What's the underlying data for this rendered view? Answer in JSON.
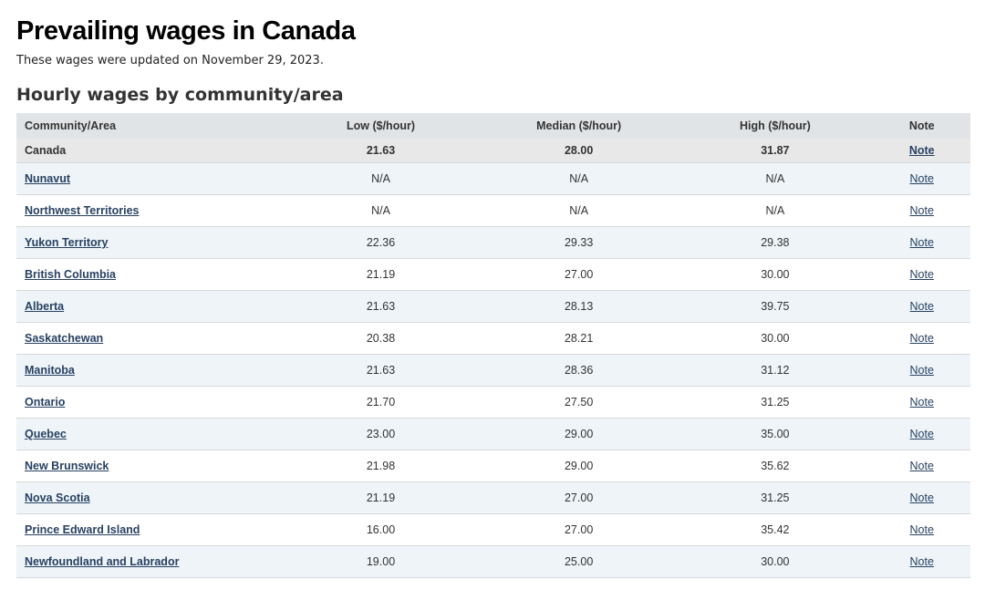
{
  "page": {
    "title": "Prevailing wages in Canada",
    "updated": "These wages were updated on November 29, 2023.",
    "section_title": "Hourly wages by community/area"
  },
  "table": {
    "headers": {
      "area": "Community/Area",
      "low": "Low ($/hour)",
      "median": "Median ($/hour)",
      "high": "High ($/hour)",
      "note": "Note"
    },
    "rows": [
      {
        "area": "Canada",
        "low": "21.63",
        "median": "28.00",
        "high": "31.87",
        "note": "Note"
      },
      {
        "area": "Nunavut",
        "low": "N/A",
        "median": "N/A",
        "high": "N/A",
        "note": "Note"
      },
      {
        "area": "Northwest Territories",
        "low": "N/A",
        "median": "N/A",
        "high": "N/A",
        "note": "Note"
      },
      {
        "area": "Yukon Territory",
        "low": "22.36",
        "median": "29.33",
        "high": "29.38",
        "note": "Note"
      },
      {
        "area": "British Columbia",
        "low": "21.19",
        "median": "27.00",
        "high": "30.00",
        "note": "Note"
      },
      {
        "area": "Alberta",
        "low": "21.63",
        "median": "28.13",
        "high": "39.75",
        "note": "Note"
      },
      {
        "area": "Saskatchewan",
        "low": "20.38",
        "median": "28.21",
        "high": "30.00",
        "note": "Note"
      },
      {
        "area": "Manitoba",
        "low": "21.63",
        "median": "28.36",
        "high": "31.12",
        "note": "Note"
      },
      {
        "area": "Ontario",
        "low": "21.70",
        "median": "27.50",
        "high": "31.25",
        "note": "Note"
      },
      {
        "area": "Quebec",
        "low": "23.00",
        "median": "29.00",
        "high": "35.00",
        "note": "Note"
      },
      {
        "area": "New Brunswick",
        "low": "21.98",
        "median": "29.00",
        "high": "35.62",
        "note": "Note"
      },
      {
        "area": "Nova Scotia",
        "low": "21.19",
        "median": "27.00",
        "high": "31.25",
        "note": "Note"
      },
      {
        "area": "Prince Edward Island",
        "low": "16.00",
        "median": "27.00",
        "high": "35.42",
        "note": "Note"
      },
      {
        "area": "Newfoundland and Labrador",
        "low": "19.00",
        "median": "25.00",
        "high": "30.00",
        "note": "Note"
      }
    ]
  },
  "colors": {
    "header_bg": "#e1e4e7",
    "canada_row_bg": "#e8e8e8",
    "alt_row_bg": "#eef4f8",
    "link": "#284162"
  }
}
